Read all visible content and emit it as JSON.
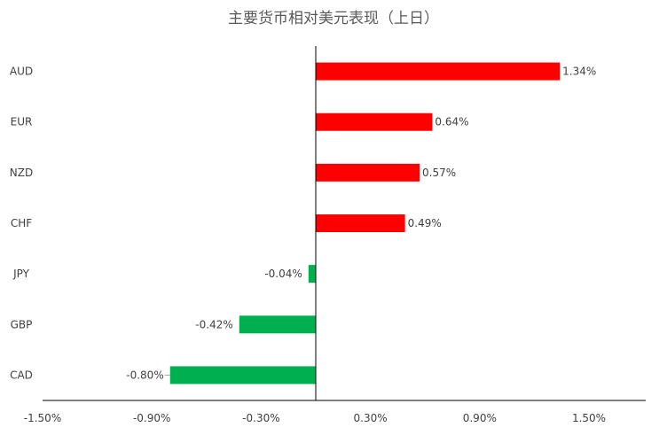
{
  "chart_data": {
    "type": "bar",
    "orientation": "horizontal",
    "title": "主要货币相对美元表现（上日）",
    "categories": [
      "AUD",
      "EUR",
      "NZD",
      "CHF",
      "JPY",
      "GBP",
      "CAD"
    ],
    "values": [
      1.34,
      0.64,
      0.57,
      0.49,
      -0.04,
      -0.42,
      -0.8
    ],
    "value_labels": [
      "1.34%",
      "0.64%",
      "0.57%",
      "0.49%",
      "-0.04%",
      "-0.42%",
      "-0.80%"
    ],
    "xlim": [
      -1.5,
      1.5
    ],
    "x_ticks": [
      -1.5,
      -0.9,
      -0.3,
      0.3,
      0.9,
      1.5
    ],
    "x_tick_labels": [
      "-1.50%",
      "-0.90%",
      "-0.30%",
      "0.30%",
      "0.90%",
      "1.50%"
    ],
    "positive_color": "#ff0000",
    "negative_color": "#00b050",
    "grid": false,
    "legend": "none"
  }
}
